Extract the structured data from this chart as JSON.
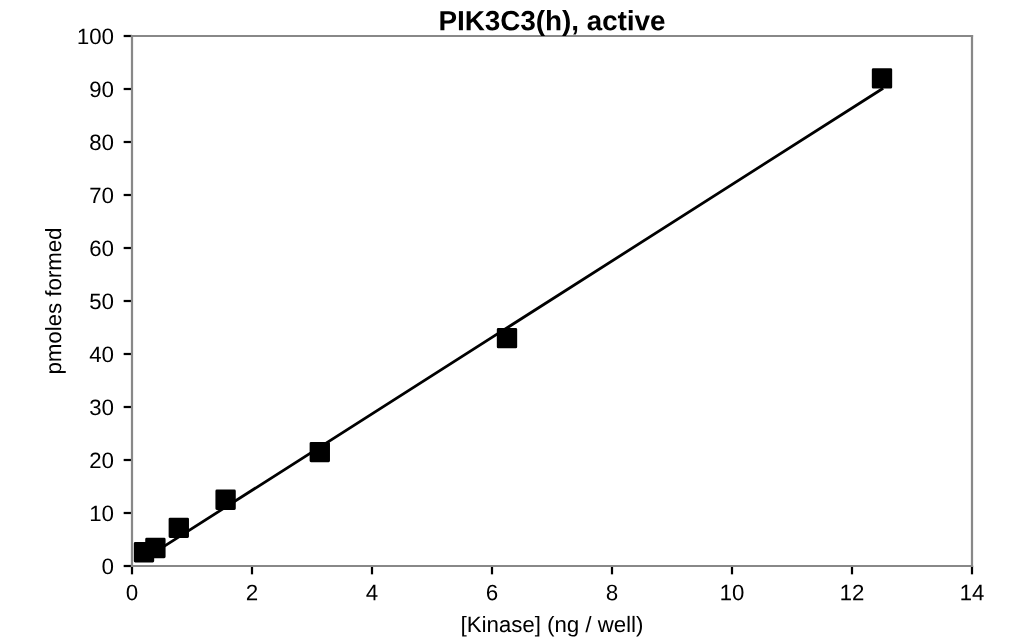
{
  "chart_data": {
    "type": "scatter",
    "title": "PIK3C3(h), active",
    "xlabel": "[Kinase] (ng / well)",
    "ylabel": "pmoles formed",
    "series": [
      {
        "color": "#000000",
        "marker": "square",
        "x": [
          0.2,
          0.39,
          0.78,
          1.56,
          3.13,
          6.25,
          12.5
        ],
        "values": [
          2.6,
          3.4,
          7.2,
          12.5,
          21.5,
          43,
          92
        ]
      },
      {
        "type": "line",
        "color": "#000000",
        "marker": "none",
        "x": [
          0.2,
          12.5
        ],
        "values": [
          1.3,
          90
        ]
      }
    ],
    "xlim": [
      0,
      14
    ],
    "xticks": [
      0,
      2,
      4,
      6,
      8,
      10,
      12,
      14
    ],
    "ylim": [
      0,
      100
    ],
    "yticks": [
      0,
      10,
      20,
      30,
      40,
      50,
      60,
      70,
      80,
      90,
      100
    ],
    "grid": false
  }
}
